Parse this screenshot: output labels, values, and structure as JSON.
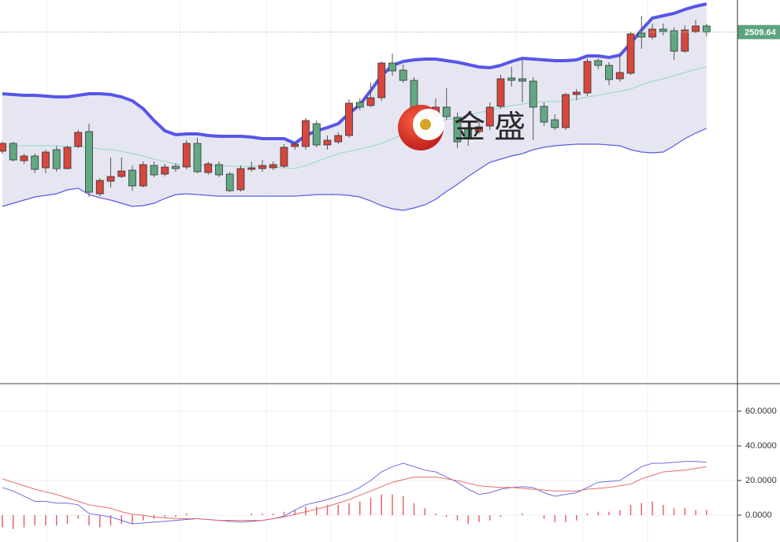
{
  "chart_data": [
    {
      "type": "candlestick",
      "open": [
        2434,
        2439,
        2428,
        2431,
        2423.5,
        2435,
        2423,
        2437,
        2446.5,
        2407,
        2415,
        2418,
        2422,
        2412,
        2425,
        2419.5,
        2424.5,
        2424,
        2439,
        2420.5,
        2425.5,
        2419.5,
        2409.5,
        2422.5,
        2423,
        2423.5,
        2424.5,
        2437,
        2437,
        2451.5,
        2438,
        2440,
        2444,
        2465,
        2463,
        2468,
        2490,
        2485.5,
        2479,
        2457,
        2456,
        2462,
        2455.5,
        2448.5,
        2446.5,
        2450,
        2462.5,
        2480.5,
        2480,
        2478.5,
        2462.5,
        2454,
        2449,
        2470,
        2471,
        2491.5,
        2488.5,
        2480,
        2483.5,
        2509,
        2506.5,
        2511.5,
        2510.5,
        2497.5,
        2510,
        2513.5
      ],
      "high": [
        2440,
        2440,
        2432.5,
        2432.5,
        2435,
        2437.5,
        2437.5,
        2447.5,
        2451.5,
        2417,
        2430,
        2430,
        2425,
        2427.5,
        2427.5,
        2426,
        2426.5,
        2441,
        2442.5,
        2427.5,
        2427.5,
        2421,
        2425,
        2427.5,
        2428.5,
        2427.5,
        2438.5,
        2440,
        2455,
        2453.5,
        2444,
        2446,
        2467,
        2467.5,
        2477.5,
        2491,
        2496,
        2489,
        2481,
        2459,
        2467.5,
        2474,
        2458.5,
        2452.5,
        2455,
        2465,
        2482.5,
        2487.5,
        2492,
        2481,
        2465,
        2457.5,
        2471,
        2473.5,
        2493,
        2493,
        2490.5,
        2495,
        2510,
        2520,
        2515,
        2515,
        2512.5,
        2514,
        2517.5,
        2515
      ],
      "low": [
        2432.5,
        2427.5,
        2426,
        2420,
        2420,
        2421,
        2422.5,
        2436,
        2405,
        2405.5,
        2411,
        2417,
        2409,
        2411,
        2417.5,
        2418,
        2421,
        2422.5,
        2420,
        2419,
        2417.5,
        2408,
        2408.5,
        2421,
        2421,
        2422,
        2423.5,
        2435,
        2435,
        2436.5,
        2435,
        2438.5,
        2442.5,
        2460,
        2462,
        2466,
        2482,
        2477.5,
        2454,
        2451,
        2454,
        2454,
        2436,
        2437.5,
        2445,
        2447.5,
        2461,
        2475,
        2465,
        2441,
        2450,
        2447.5,
        2447.5,
        2466.5,
        2469,
        2486,
        2476,
        2478,
        2482.5,
        2499,
        2505,
        2507.5,
        2492,
        2496.5,
        2509,
        2507
      ],
      "close": [
        2439,
        2428.5,
        2431,
        2422.5,
        2433.5,
        2423,
        2436.5,
        2446,
        2408,
        2415.5,
        2418,
        2421.5,
        2412,
        2425.5,
        2419,
        2424,
        2423,
        2439,
        2421,
        2426,
        2419,
        2409,
        2423,
        2423.5,
        2425,
        2425.5,
        2436.5,
        2438.5,
        2453.5,
        2438,
        2441,
        2444,
        2464.5,
        2462,
        2468,
        2490,
        2485,
        2479,
        2456,
        2455,
        2462,
        2456,
        2440,
        2442,
        2449.5,
        2462,
        2480,
        2479,
        2478.5,
        2462,
        2452.5,
        2449,
        2470,
        2471.5,
        2491,
        2488.5,
        2479.5,
        2484,
        2508.5,
        2506.5,
        2511.5,
        2510,
        2497.5,
        2511,
        2513.5,
        2509.64
      ],
      "up_color": "#d6473d",
      "down_color": "#62a883",
      "ylim": [
        2287,
        2530
      ],
      "series": [
        {
          "color": "#5656e8",
          "values": [
            2470.5,
            2470,
            2469.5,
            2469.5,
            2469,
            2468.5,
            2468.5,
            2469.5,
            2470.5,
            2470.5,
            2470,
            2468.5,
            2466,
            2461,
            2453.5,
            2447,
            2444.5,
            2445,
            2445,
            2444,
            2443.5,
            2443.5,
            2443.5,
            2443,
            2442,
            2442,
            2442,
            2439,
            2444,
            2447,
            2449,
            2451.5,
            2458,
            2463.5,
            2472.5,
            2482,
            2488.5,
            2491,
            2492,
            2492.5,
            2492.5,
            2491.5,
            2490.5,
            2489,
            2487.5,
            2487,
            2488.5,
            2491,
            2493,
            2492.5,
            2492,
            2491.5,
            2491.5,
            2492,
            2494.5,
            2494.5,
            2493.5,
            2495,
            2502.5,
            2511,
            2518.5,
            2520,
            2521.5,
            2524,
            2526,
            2527.5
          ]
        },
        {
          "color": "#8fd9c6",
          "values": [
            2437,
            2437,
            2437.5,
            2437.5,
            2437.5,
            2437.5,
            2437,
            2437,
            2436.5,
            2435.5,
            2435,
            2434,
            2432.5,
            2431,
            2429,
            2427.5,
            2426,
            2425,
            2425,
            2425,
            2425,
            2424.5,
            2424.5,
            2424.5,
            2424.5,
            2424,
            2423.5,
            2423,
            2425,
            2427.5,
            2430,
            2432.5,
            2434,
            2435.5,
            2437,
            2439,
            2442,
            2445,
            2447.5,
            2450,
            2452.5,
            2454,
            2455.5,
            2457,
            2458.5,
            2460,
            2461.5,
            2463,
            2464,
            2465,
            2465.5,
            2465.5,
            2466,
            2467,
            2468.5,
            2469.5,
            2471,
            2472,
            2473.5,
            2476,
            2478.5,
            2480,
            2482,
            2484,
            2486,
            2487.5
          ]
        },
        {
          "color": "#5a5ae2",
          "values": [
            2399,
            2401,
            2403,
            2405,
            2406,
            2407,
            2409.5,
            2410.5,
            2406.5,
            2404.5,
            2403,
            2401,
            2399,
            2399.5,
            2401,
            2404,
            2406.5,
            2407,
            2406.5,
            2406,
            2405.5,
            2405.5,
            2405.5,
            2405.5,
            2405.5,
            2405.5,
            2405.5,
            2405.5,
            2406,
            2406.5,
            2406.5,
            2406.5,
            2406,
            2405,
            2402.5,
            2399.5,
            2397.5,
            2396.5,
            2398,
            2400,
            2403.5,
            2408.5,
            2413,
            2418,
            2422.5,
            2427,
            2429,
            2431,
            2432.5,
            2435,
            2436.5,
            2437.5,
            2438,
            2438.5,
            2438.5,
            2438.5,
            2438,
            2437.5,
            2435,
            2433.5,
            2433,
            2433.5,
            2437.5,
            2442,
            2445.5,
            2448.5
          ]
        }
      ],
      "band_fill": "#e6e6f2",
      "last_price": 2509.64,
      "last_price_color": "#5da37e"
    },
    {
      "type": "macd",
      "ylim": [
        -15.45,
        74.55
      ],
      "yticks": [
        {
          "value": 0,
          "label": "0.0000"
        },
        {
          "value": 20,
          "label": "20.0000"
        },
        {
          "value": 40,
          "label": "40.0000"
        },
        {
          "value": 60,
          "label": "60.0000"
        }
      ],
      "grid": true,
      "series": [
        {
          "type": "bar",
          "color": "#e8636b",
          "values": [
            -7,
            -8,
            -7,
            -6,
            -6,
            -6,
            -5,
            -2,
            -6,
            -7,
            -6,
            -5,
            -5,
            -3,
            -2,
            -1,
            -1,
            1,
            0,
            0,
            0,
            0,
            0,
            1,
            1,
            1,
            2,
            3,
            5,
            5,
            6,
            6,
            7,
            8,
            10,
            12,
            12,
            11,
            7,
            4,
            1,
            -1,
            -3,
            -5,
            -4,
            -3,
            -1,
            0,
            1,
            0,
            -2,
            -4,
            -4,
            -3,
            1,
            2,
            2,
            3,
            6,
            7,
            8,
            6,
            4,
            4,
            3,
            3
          ]
        },
        {
          "type": "line",
          "color": "#6d6ddb",
          "values": [
            16,
            14,
            11,
            8,
            8,
            7,
            7,
            6,
            1,
            0,
            -1,
            -3,
            -5,
            -4.5,
            -4,
            -3.5,
            -3,
            -2.5,
            -2,
            -2.5,
            -3,
            -3.5,
            -4,
            -3.5,
            -3,
            -2,
            -0.5,
            3,
            6,
            7.5,
            9,
            11,
            13,
            16,
            20,
            25,
            28,
            30,
            28,
            26,
            25,
            22,
            19,
            15,
            12,
            13,
            15,
            16,
            16.5,
            16,
            13,
            11,
            12,
            13,
            16,
            19,
            19.5,
            20,
            24,
            28,
            30,
            30,
            30.5,
            31,
            31,
            30.5
          ]
        },
        {
          "type": "line",
          "color": "#e46a6a",
          "values": [
            21,
            19,
            17,
            15,
            13.5,
            12,
            10,
            8,
            6,
            5,
            4,
            2,
            0.5,
            0,
            -1,
            -1.5,
            -2,
            -2,
            -2,
            -2.5,
            -3,
            -3,
            -3,
            -3,
            -3,
            -2,
            -1,
            0.5,
            2,
            3.5,
            5,
            7,
            9,
            11.5,
            14,
            16.5,
            19,
            20.5,
            22,
            22,
            22,
            21,
            20,
            18.5,
            17,
            16.5,
            16,
            16,
            15.5,
            15,
            14.5,
            14,
            14,
            14,
            15,
            15.5,
            16,
            17,
            18,
            21,
            23,
            25,
            25.5,
            26,
            27,
            28
          ]
        }
      ]
    }
  ],
  "watermark": "金 盛"
}
